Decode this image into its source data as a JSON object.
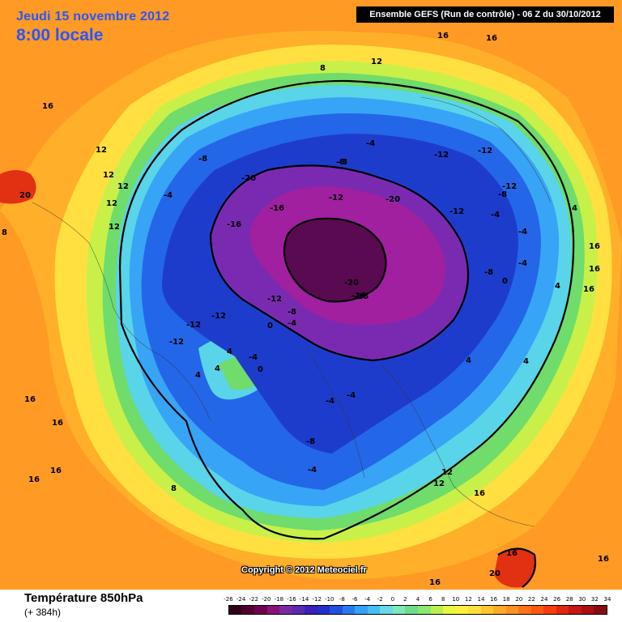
{
  "header": {
    "date": "Jeudi 15 novembre 2012",
    "time": "8:00 locale",
    "run": "Ensemble GEFS (Run de contrôle)  -  06 Z du 30/10/2012"
  },
  "copyright": "Copyright © 2012 Meteociel.fr",
  "footer": {
    "field": "Température 850hPa",
    "lead": "(+ 384h)"
  },
  "legend": {
    "labels": [
      "-26",
      "-24",
      "-22",
      "-20",
      "-18",
      "-16",
      "-14",
      "-12",
      "-10",
      "-8",
      "-6",
      "-4",
      "-2",
      "0",
      "2",
      "4",
      "6",
      "8",
      "10",
      "12",
      "14",
      "16",
      "18",
      "20",
      "22",
      "24",
      "26",
      "28",
      "30",
      "32",
      "34"
    ],
    "colors": [
      "#300018",
      "#500030",
      "#700050",
      "#8a1078",
      "#7a2aa0",
      "#5a2ab0",
      "#3a20b8",
      "#2030c8",
      "#2050e0",
      "#2a78ef",
      "#34a0f5",
      "#45c0f2",
      "#6ad8e8",
      "#7ee8b8",
      "#6fdc8c",
      "#8be870",
      "#b8f050",
      "#e8f840",
      "#fff040",
      "#ffe040",
      "#ffc630",
      "#ffaa28",
      "#ff9022",
      "#ff7418",
      "#ff5812",
      "#f63c10",
      "#e02810",
      "#c41810",
      "#a81010",
      "#880c0c"
    ]
  },
  "map": {
    "colors": {
      "warm_background": "#ff9a24",
      "orange": "#ffaf2a",
      "yellow": "#ffe040",
      "lime": "#c8f048",
      "green": "#6fdc6c",
      "cyan": "#5ad4e8",
      "light_blue": "#38a4f6",
      "blue": "#2466e8",
      "dark_blue": "#1e3ccc",
      "purple": "#7a2ab0",
      "magenta": "#a020a0",
      "deep_purple": "#5a0a50",
      "red": "#e23012"
    },
    "labels": [
      {
        "text": "16"
      },
      {
        "text": "16"
      },
      {
        "text": "12"
      },
      {
        "text": "8"
      },
      {
        "text": "16"
      },
      {
        "text": "12"
      },
      {
        "text": "12"
      },
      {
        "text": "12"
      },
      {
        "text": "20"
      },
      {
        "text": "12"
      },
      {
        "text": "-4"
      },
      {
        "text": "-8"
      },
      {
        "text": "-8"
      },
      {
        "text": "-4"
      },
      {
        "text": "-12"
      },
      {
        "text": "-12"
      },
      {
        "text": "-20"
      },
      {
        "text": "-16"
      },
      {
        "text": "-12"
      },
      {
        "text": "-20"
      },
      {
        "text": "-8"
      },
      {
        "text": "-12"
      },
      {
        "text": "-16"
      },
      {
        "text": "-16"
      },
      {
        "text": "-8"
      },
      {
        "text": "-12"
      },
      {
        "text": "-4"
      },
      {
        "text": "-4"
      },
      {
        "text": "-4"
      },
      {
        "text": "-8"
      },
      {
        "text": "0"
      },
      {
        "text": "4"
      },
      {
        "text": "16"
      },
      {
        "text": "16"
      },
      {
        "text": "16"
      },
      {
        "text": "4"
      },
      {
        "text": "-20"
      },
      {
        "text": "-16"
      },
      {
        "text": "-12"
      },
      {
        "text": "-12"
      },
      {
        "text": "-12"
      },
      {
        "text": "-12"
      },
      {
        "text": "-8"
      },
      {
        "text": "-4"
      },
      {
        "text": "0"
      },
      {
        "text": "4"
      },
      {
        "text": "4"
      },
      {
        "text": "-4"
      },
      {
        "text": "0"
      },
      {
        "text": "4"
      },
      {
        "text": "-4"
      },
      {
        "text": "-4"
      },
      {
        "text": "-8"
      },
      {
        "text": "-4"
      },
      {
        "text": "4"
      },
      {
        "text": "8"
      },
      {
        "text": "12"
      },
      {
        "text": "12"
      },
      {
        "text": "16"
      },
      {
        "text": "16"
      },
      {
        "text": "16"
      },
      {
        "text": "16"
      },
      {
        "text": "16"
      },
      {
        "text": "8"
      },
      {
        "text": "4"
      },
      {
        "text": "16"
      },
      {
        "text": "20"
      },
      {
        "text": "16"
      },
      {
        "text": "16"
      },
      {
        "text": "12"
      }
    ]
  }
}
